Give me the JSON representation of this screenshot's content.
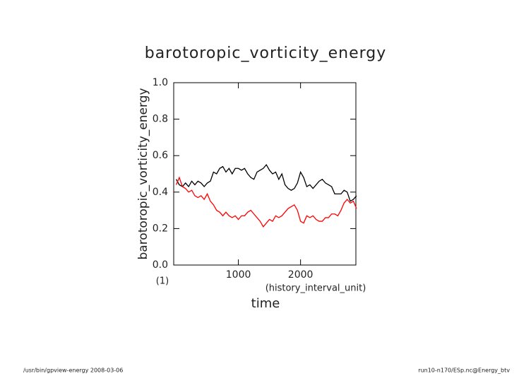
{
  "chart_data": {
    "type": "line",
    "title": "barotoropic_vorticity_energy",
    "y_label": "barotoropic_vorticity_energy",
    "y_unit": "(1)",
    "x_label": "time",
    "x_unit": "(history_interval_unit)",
    "footer_left": "/usr/bin/gpview-energy  2008-03-06",
    "footer_right": "run10-n170/ESp.nc@Energy_btv",
    "x": [
      0,
      50,
      100,
      150,
      200,
      250,
      300,
      350,
      400,
      450,
      500,
      550,
      600,
      650,
      700,
      750,
      800,
      850,
      900,
      950,
      1000,
      1050,
      1100,
      1150,
      1200,
      1250,
      1300,
      1350,
      1400,
      1450,
      1500,
      1550,
      1600,
      1650,
      1700,
      1750,
      1800,
      1850,
      1900,
      1950,
      2000,
      2050,
      2100,
      2150,
      2200,
      2250,
      2300,
      2350,
      2400,
      2450,
      2500,
      2550,
      2600,
      2650,
      2700,
      2750,
      2800,
      2850,
      2900
    ],
    "series": [
      {
        "color": "#000000",
        "values": [
          0.47,
          0.44,
          0.43,
          0.45,
          0.43,
          0.46,
          0.44,
          0.46,
          0.45,
          0.43,
          0.45,
          0.46,
          0.51,
          0.5,
          0.53,
          0.54,
          0.51,
          0.53,
          0.5,
          0.53,
          0.53,
          0.52,
          0.53,
          0.5,
          0.48,
          0.47,
          0.51,
          0.52,
          0.53,
          0.55,
          0.52,
          0.5,
          0.51,
          0.47,
          0.5,
          0.44,
          0.42,
          0.41,
          0.42,
          0.45,
          0.51,
          0.48,
          0.43,
          0.44,
          0.42,
          0.44,
          0.46,
          0.47,
          0.45,
          0.44,
          0.43,
          0.39,
          0.39,
          0.39,
          0.41,
          0.4,
          0.35,
          0.36,
          0.38
        ]
      },
      {
        "color": "#ff0000",
        "values": [
          0.44,
          0.48,
          0.43,
          0.42,
          0.4,
          0.41,
          0.38,
          0.37,
          0.38,
          0.36,
          0.39,
          0.35,
          0.33,
          0.3,
          0.29,
          0.27,
          0.29,
          0.27,
          0.26,
          0.27,
          0.25,
          0.27,
          0.27,
          0.29,
          0.3,
          0.28,
          0.26,
          0.24,
          0.21,
          0.23,
          0.25,
          0.24,
          0.27,
          0.26,
          0.27,
          0.29,
          0.31,
          0.32,
          0.33,
          0.3,
          0.24,
          0.23,
          0.27,
          0.26,
          0.27,
          0.25,
          0.24,
          0.24,
          0.26,
          0.26,
          0.28,
          0.28,
          0.27,
          0.3,
          0.34,
          0.36,
          0.34,
          0.35,
          0.31
        ]
      }
    ],
    "xlim": [
      -40,
      2890
    ],
    "ylim": [
      0,
      1
    ],
    "xticks": [
      1000,
      2000
    ],
    "yticks": [
      {
        "value": 0,
        "label": "0.0"
      },
      0.2,
      0.4,
      0.6,
      0.8,
      {
        "value": 1,
        "label": "1.0"
      }
    ],
    "grid": false
  }
}
